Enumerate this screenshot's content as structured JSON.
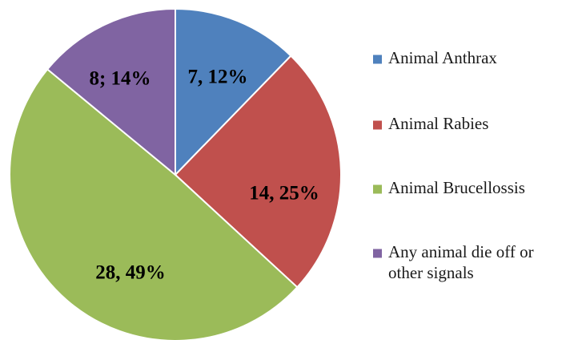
{
  "chart_data": {
    "type": "pie",
    "start_angle_deg": 0,
    "direction": "clockwise",
    "slices": [
      {
        "label": "Animal Anthrax",
        "label_lines": [
          "Animal Anthrax"
        ],
        "value": 7,
        "percent": 12,
        "data_label": "7, 12%",
        "color": "#4F81BD"
      },
      {
        "label": "Animal Rabies",
        "label_lines": [
          "Animal Rabies"
        ],
        "value": 14,
        "percent": 25,
        "data_label": "14, 25%",
        "color": "#C0504D"
      },
      {
        "label": "Animal Brucellossis",
        "label_lines": [
          "Animal Brucellossis"
        ],
        "value": 28,
        "percent": 49,
        "data_label": "28, 49%",
        "color": "#9BBB59"
      },
      {
        "label": "Any animal die off or other signals",
        "label_lines": [
          "Any animal die off or",
          "other signals"
        ],
        "value": 8,
        "percent": 14,
        "data_label": "8; 14%",
        "color": "#8064A2"
      }
    ],
    "legend": {
      "position": "right"
    },
    "slice_border_color": "#ffffff"
  }
}
